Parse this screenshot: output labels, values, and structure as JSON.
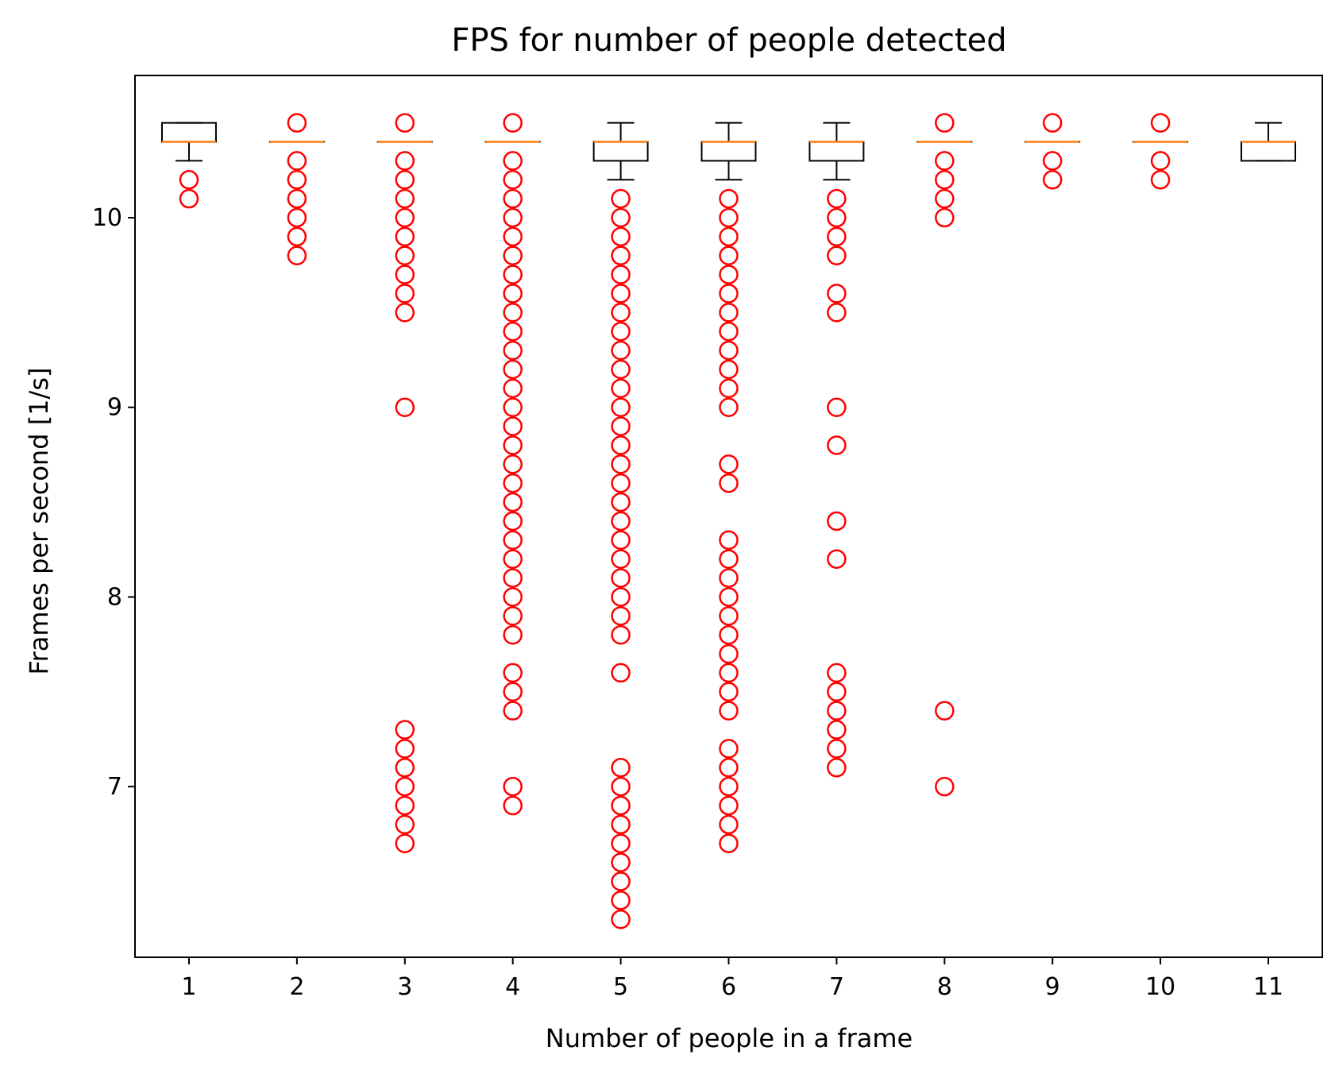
{
  "chart_data": {
    "type": "box",
    "title": "FPS for number of people detected",
    "xlabel": "Number of people in a frame",
    "ylabel": "Frames per second [1/s]",
    "ylim": [
      6.1,
      10.75
    ],
    "yticks": [
      7,
      8,
      9,
      10
    ],
    "grid": false,
    "colors": {
      "box": "#000000",
      "median": "#ff7f0e",
      "flier": "#ff0000"
    },
    "categories": [
      "1",
      "2",
      "3",
      "4",
      "5",
      "6",
      "7",
      "8",
      "9",
      "10",
      "11"
    ],
    "boxes": [
      {
        "category": "1",
        "whisker_low": 10.3,
        "q1": 10.4,
        "median": 10.4,
        "q3": 10.5,
        "whisker_high": 10.5,
        "fliers": [
          10.2,
          10.1
        ]
      },
      {
        "category": "2",
        "whisker_low": 10.4,
        "q1": 10.4,
        "median": 10.4,
        "q3": 10.4,
        "whisker_high": 10.4,
        "fliers": [
          10.5,
          10.3,
          10.2,
          10.1,
          10.0,
          9.9,
          9.8
        ]
      },
      {
        "category": "3",
        "whisker_low": 10.4,
        "q1": 10.4,
        "median": 10.4,
        "q3": 10.4,
        "whisker_high": 10.4,
        "fliers": [
          10.5,
          10.3,
          10.2,
          10.1,
          10.0,
          9.9,
          9.8,
          9.7,
          9.6,
          9.5,
          9.0,
          7.3,
          7.2,
          7.1,
          7.0,
          6.9,
          6.8,
          6.7
        ]
      },
      {
        "category": "4",
        "whisker_low": 10.4,
        "q1": 10.4,
        "median": 10.4,
        "q3": 10.4,
        "whisker_high": 10.4,
        "fliers": [
          10.5,
          10.3,
          10.2,
          10.1,
          10.0,
          9.9,
          9.8,
          9.7,
          9.6,
          9.5,
          9.4,
          9.3,
          9.2,
          9.1,
          9.0,
          8.9,
          8.8,
          8.7,
          8.6,
          8.5,
          8.4,
          8.3,
          8.2,
          8.1,
          8.0,
          7.9,
          7.8,
          7.6,
          7.5,
          7.4,
          7.0,
          6.9
        ]
      },
      {
        "category": "5",
        "whisker_low": 10.2,
        "q1": 10.3,
        "median": 10.4,
        "q3": 10.4,
        "whisker_high": 10.5,
        "fliers": [
          10.1,
          10.0,
          9.9,
          9.8,
          9.7,
          9.6,
          9.5,
          9.4,
          9.3,
          9.2,
          9.1,
          9.0,
          8.9,
          8.8,
          8.7,
          8.6,
          8.5,
          8.4,
          8.3,
          8.2,
          8.1,
          8.0,
          7.9,
          7.8,
          7.6,
          7.1,
          7.0,
          6.9,
          6.8,
          6.7,
          6.6,
          6.5,
          6.4,
          6.3
        ]
      },
      {
        "category": "6",
        "whisker_low": 10.2,
        "q1": 10.3,
        "median": 10.4,
        "q3": 10.4,
        "whisker_high": 10.5,
        "fliers": [
          10.1,
          10.0,
          9.9,
          9.8,
          9.7,
          9.6,
          9.5,
          9.4,
          9.3,
          9.2,
          9.1,
          9.0,
          8.7,
          8.6,
          8.3,
          8.2,
          8.1,
          8.0,
          7.9,
          7.8,
          7.7,
          7.6,
          7.5,
          7.4,
          7.2,
          7.1,
          7.0,
          6.9,
          6.8,
          6.7
        ]
      },
      {
        "category": "7",
        "whisker_low": 10.2,
        "q1": 10.3,
        "median": 10.4,
        "q3": 10.4,
        "whisker_high": 10.5,
        "fliers": [
          10.1,
          10.0,
          9.9,
          9.8,
          9.6,
          9.5,
          9.0,
          8.8,
          8.4,
          8.2,
          7.6,
          7.5,
          7.4,
          7.3,
          7.2,
          7.1
        ]
      },
      {
        "category": "8",
        "whisker_low": 10.4,
        "q1": 10.4,
        "median": 10.4,
        "q3": 10.4,
        "whisker_high": 10.4,
        "fliers": [
          10.5,
          10.3,
          10.2,
          10.1,
          10.0,
          7.4,
          7.0
        ]
      },
      {
        "category": "9",
        "whisker_low": 10.4,
        "q1": 10.4,
        "median": 10.4,
        "q3": 10.4,
        "whisker_high": 10.4,
        "fliers": [
          10.5,
          10.3,
          10.2
        ]
      },
      {
        "category": "10",
        "whisker_low": 10.4,
        "q1": 10.4,
        "median": 10.4,
        "q3": 10.4,
        "whisker_high": 10.4,
        "fliers": [
          10.5,
          10.3,
          10.2
        ]
      },
      {
        "category": "11",
        "whisker_low": 10.3,
        "q1": 10.3,
        "median": 10.4,
        "q3": 10.4,
        "whisker_high": 10.5,
        "fliers": []
      }
    ]
  }
}
